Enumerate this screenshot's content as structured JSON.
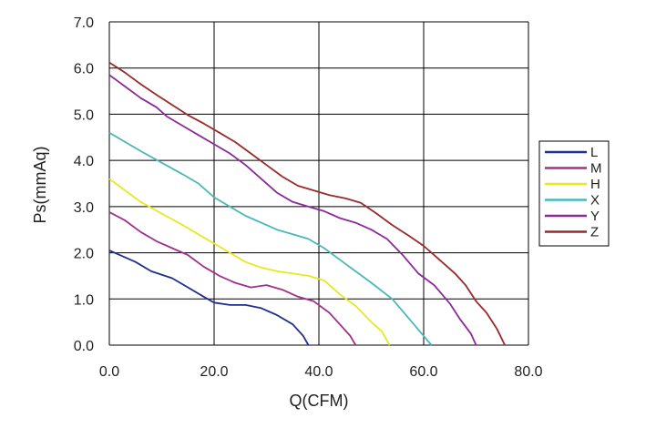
{
  "chart_data": {
    "type": "line",
    "xlabel": "Q(CFM)",
    "ylabel": "Ps(mmAq)",
    "xlim": [
      0,
      80
    ],
    "ylim": [
      0,
      7
    ],
    "xticks": [
      "0.0",
      "20.0",
      "40.0",
      "60.0",
      "80.0"
    ],
    "yticks": [
      "0.0",
      "1.0",
      "2.0",
      "3.0",
      "4.0",
      "5.0",
      "6.0",
      "7.0"
    ],
    "grid": true,
    "legend_position": "right",
    "series": [
      {
        "name": "L",
        "color": "#1f2f8f",
        "points": [
          [
            0,
            2.05
          ],
          [
            2,
            1.95
          ],
          [
            5,
            1.8
          ],
          [
            8,
            1.6
          ],
          [
            12,
            1.45
          ],
          [
            15,
            1.25
          ],
          [
            18,
            1.05
          ],
          [
            20,
            0.92
          ],
          [
            23,
            0.87
          ],
          [
            26,
            0.87
          ],
          [
            29,
            0.8
          ],
          [
            32,
            0.65
          ],
          [
            35,
            0.45
          ],
          [
            37,
            0.2
          ],
          [
            38,
            0.0
          ]
        ]
      },
      {
        "name": "M",
        "color": "#a0308a",
        "points": [
          [
            0,
            2.88
          ],
          [
            3,
            2.7
          ],
          [
            6,
            2.45
          ],
          [
            9,
            2.25
          ],
          [
            12,
            2.1
          ],
          [
            15,
            1.95
          ],
          [
            18,
            1.7
          ],
          [
            21,
            1.5
          ],
          [
            24,
            1.35
          ],
          [
            27,
            1.25
          ],
          [
            30,
            1.3
          ],
          [
            33,
            1.2
          ],
          [
            36,
            1.05
          ],
          [
            39,
            0.95
          ],
          [
            42,
            0.7
          ],
          [
            44,
            0.45
          ],
          [
            46,
            0.2
          ],
          [
            47,
            0.0
          ]
        ]
      },
      {
        "name": "H",
        "color": "#e8e820",
        "points": [
          [
            0,
            3.6
          ],
          [
            3,
            3.35
          ],
          [
            6,
            3.1
          ],
          [
            10,
            2.85
          ],
          [
            14,
            2.6
          ],
          [
            17,
            2.4
          ],
          [
            20,
            2.2
          ],
          [
            23,
            2.0
          ],
          [
            26,
            1.8
          ],
          [
            29,
            1.68
          ],
          [
            32,
            1.6
          ],
          [
            35,
            1.55
          ],
          [
            38,
            1.5
          ],
          [
            41,
            1.4
          ],
          [
            44,
            1.1
          ],
          [
            47,
            0.85
          ],
          [
            50,
            0.5
          ],
          [
            52,
            0.3
          ],
          [
            53.5,
            0.0
          ]
        ]
      },
      {
        "name": "X",
        "color": "#4ab8b8",
        "points": [
          [
            0,
            4.6
          ],
          [
            3,
            4.4
          ],
          [
            6,
            4.2
          ],
          [
            10,
            3.95
          ],
          [
            14,
            3.7
          ],
          [
            17,
            3.5
          ],
          [
            20,
            3.2
          ],
          [
            23,
            3.0
          ],
          [
            26,
            2.8
          ],
          [
            29,
            2.65
          ],
          [
            32,
            2.5
          ],
          [
            35,
            2.4
          ],
          [
            38,
            2.3
          ],
          [
            41,
            2.1
          ],
          [
            44,
            1.85
          ],
          [
            47,
            1.6
          ],
          [
            50,
            1.35
          ],
          [
            54,
            1.0
          ],
          [
            57,
            0.6
          ],
          [
            60,
            0.2
          ],
          [
            61.5,
            0.0
          ]
        ]
      },
      {
        "name": "Y",
        "color": "#8a2a9a",
        "points": [
          [
            0,
            5.85
          ],
          [
            3,
            5.6
          ],
          [
            6,
            5.35
          ],
          [
            9,
            5.15
          ],
          [
            11,
            4.95
          ],
          [
            14,
            4.75
          ],
          [
            17,
            4.55
          ],
          [
            20,
            4.35
          ],
          [
            23,
            4.15
          ],
          [
            26,
            3.9
          ],
          [
            29,
            3.6
          ],
          [
            32,
            3.3
          ],
          [
            35,
            3.1
          ],
          [
            38,
            3.0
          ],
          [
            41,
            2.9
          ],
          [
            44,
            2.75
          ],
          [
            47,
            2.65
          ],
          [
            50,
            2.5
          ],
          [
            53,
            2.3
          ],
          [
            56,
            1.95
          ],
          [
            59,
            1.55
          ],
          [
            62,
            1.3
          ],
          [
            65,
            0.9
          ],
          [
            67,
            0.55
          ],
          [
            69,
            0.25
          ],
          [
            70,
            0.0
          ]
        ]
      },
      {
        "name": "Z",
        "color": "#9a2a2a",
        "points": [
          [
            0,
            6.12
          ],
          [
            3,
            5.9
          ],
          [
            6,
            5.65
          ],
          [
            9,
            5.42
          ],
          [
            12,
            5.2
          ],
          [
            15,
            4.98
          ],
          [
            18,
            4.8
          ],
          [
            21,
            4.6
          ],
          [
            24,
            4.4
          ],
          [
            27,
            4.15
          ],
          [
            30,
            3.9
          ],
          [
            33,
            3.65
          ],
          [
            36,
            3.45
          ],
          [
            39,
            3.35
          ],
          [
            42,
            3.25
          ],
          [
            45,
            3.18
          ],
          [
            48,
            3.08
          ],
          [
            51,
            2.85
          ],
          [
            54,
            2.6
          ],
          [
            57,
            2.38
          ],
          [
            60,
            2.15
          ],
          [
            63,
            1.85
          ],
          [
            66,
            1.55
          ],
          [
            68,
            1.3
          ],
          [
            70,
            0.95
          ],
          [
            72,
            0.7
          ],
          [
            74,
            0.35
          ],
          [
            75.5,
            0.0
          ]
        ]
      }
    ]
  }
}
